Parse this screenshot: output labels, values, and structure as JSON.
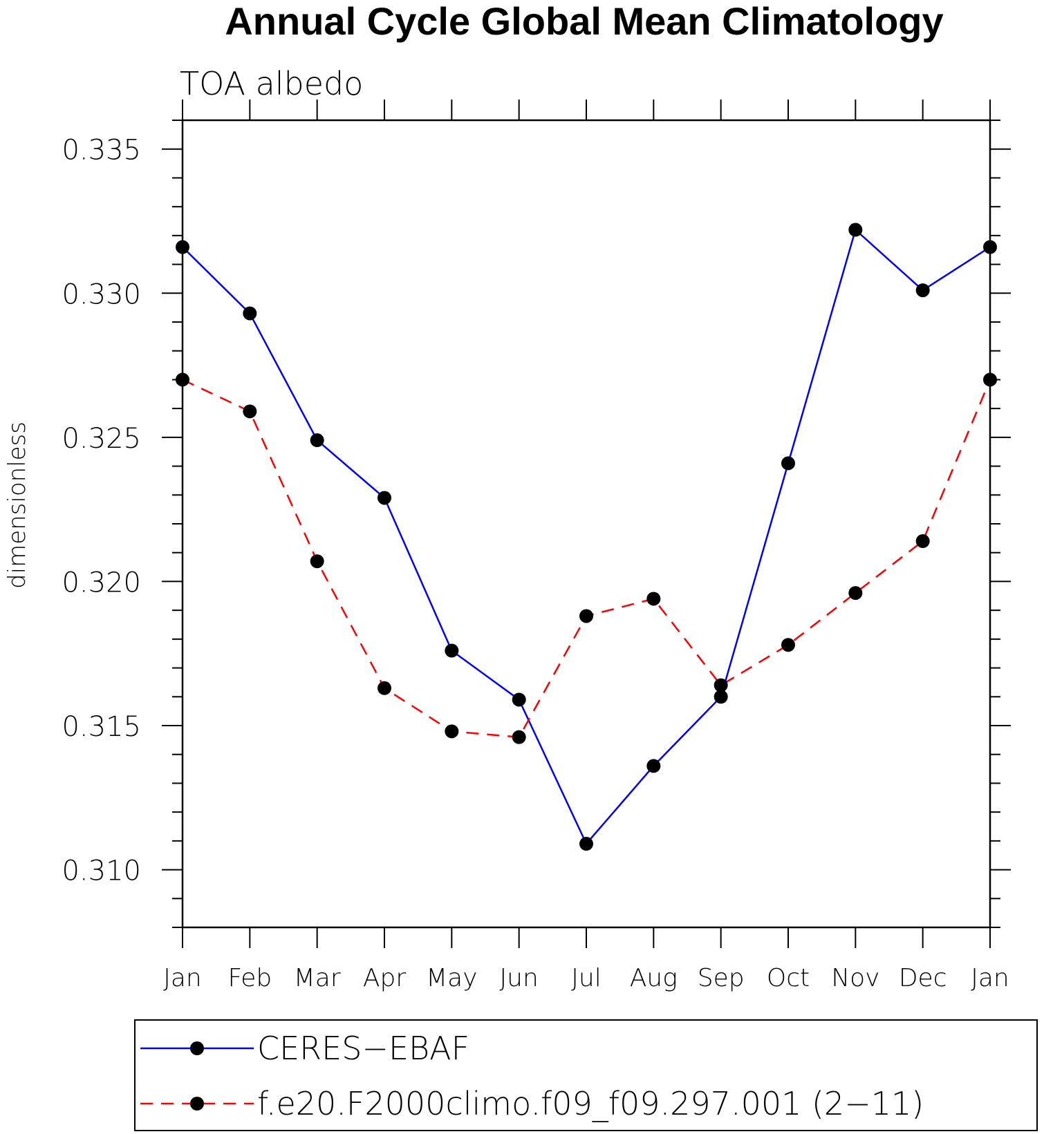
{
  "chart_data": {
    "type": "line",
    "title": "Annual Cycle Global Mean Climatology",
    "subtitle": "TOA albedo",
    "xlabel": "",
    "ylabel": "dimensionless",
    "categories": [
      "Jan",
      "Feb",
      "Mar",
      "Apr",
      "May",
      "Jun",
      "Jul",
      "Aug",
      "Sep",
      "Oct",
      "Nov",
      "Dec",
      "Jan"
    ],
    "ylim": [
      0.308,
      0.336
    ],
    "yticks": [
      "0.310",
      "0.315",
      "0.320",
      "0.325",
      "0.330",
      "0.335"
    ],
    "ytick_values": [
      0.31,
      0.315,
      0.32,
      0.325,
      0.33,
      0.335
    ],
    "grid": false,
    "legend_position": "bottom",
    "series": [
      {
        "name": "CERES−EBAF",
        "color": "#0000ff",
        "line_style": "solid",
        "marker": "filled-circle",
        "values": [
          0.3316,
          0.3293,
          0.3249,
          0.3229,
          0.3176,
          0.3159,
          0.3109,
          0.3136,
          0.316,
          0.3241,
          0.3322,
          0.3301,
          0.3316
        ]
      },
      {
        "name": "f.e20.F2000climo.f09_f09.297.001 (2−11)",
        "color": "#ff0000",
        "line_style": "dashed",
        "marker": "filled-circle",
        "values": [
          0.327,
          0.3259,
          0.3207,
          0.3163,
          0.3148,
          0.3146,
          0.3188,
          0.3194,
          0.3164,
          0.3178,
          0.3196,
          0.3214,
          0.327
        ]
      }
    ]
  }
}
